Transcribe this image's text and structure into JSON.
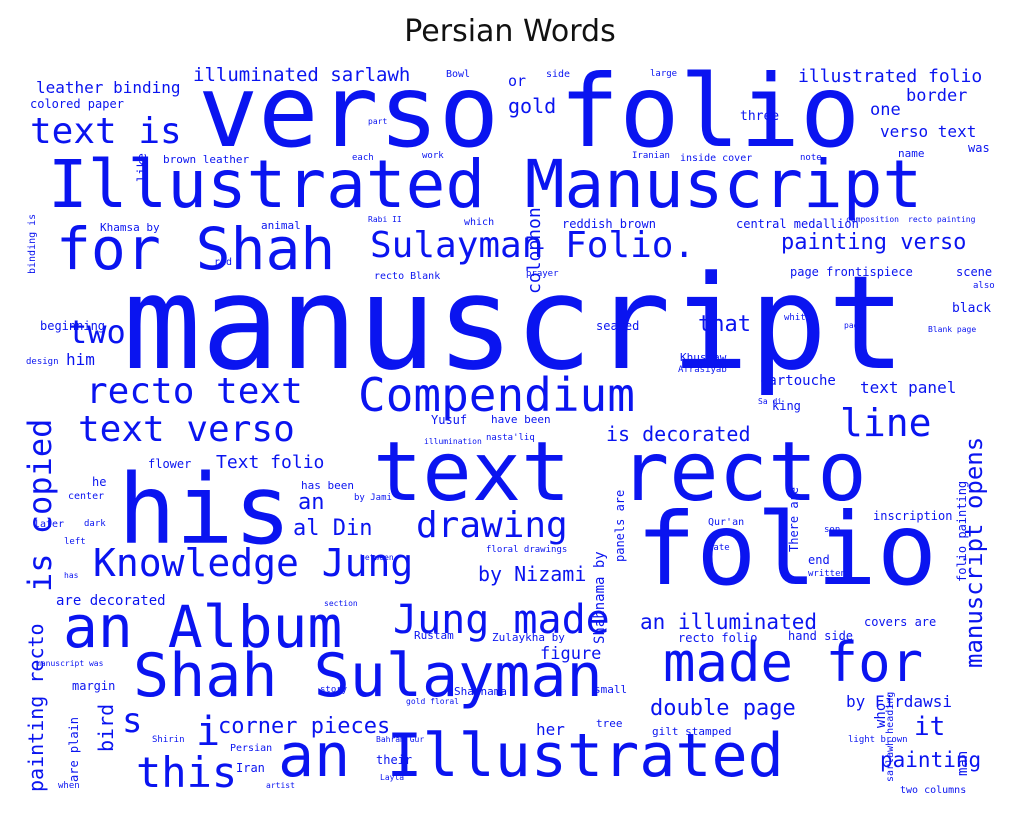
{
  "title": "Persian Words",
  "colors": {
    "word": "#0a14f0",
    "background": "#ffffff"
  },
  "words": {
    "manuscript": "manuscript",
    "verso_folio": "verso folio",
    "illustrated_manuscript": "Illustrated Manuscript",
    "text_recto": "text recto",
    "his": "his",
    "folio": "folio",
    "an_illustrated": "an Illustrated",
    "shah_sulayman": "Shah Sulayman",
    "an_album": "an Album",
    "for_shah": "for Shah",
    "sulayman_folio": "Sulayman Folio.",
    "compendium": "Compendium",
    "made_for": "made for",
    "text_is": "text is",
    "knowledge_jung": "Knowledge Jung",
    "text_verso": "text verso",
    "recto_text": "recto text",
    "jung_made": "Jung made",
    "drawing": "drawing",
    "this": "this",
    "two": "two",
    "line": "line",
    "is_copied": "is copied",
    "manuscript_opens": "manuscript opens",
    "painting_verso": "painting verso",
    "illuminated_sarlawh": "illuminated sarlawh",
    "illustrated_folio": "illustrated folio",
    "leather_binding": "leather binding",
    "an_illuminated": "an illuminated",
    "double_page": "double page",
    "corner_pieces": "corner pieces",
    "by_nizami": "by Nizami",
    "is_decorated": "is decorated",
    "painting_recto": "painting recto",
    "colophon": "colophon",
    "gold": "gold",
    "that": "that",
    "painting": "painting",
    "text_folio": "Text folio",
    "al_din": "al Din",
    "an": "an",
    "s": "s",
    "i": "i",
    "bird": "bird",
    "it": "it",
    "figure": "figure",
    "border": "border",
    "verso_text": "verso text",
    "one": "one",
    "three": "three",
    "or": "or",
    "by_firdawsi": "by Firdawsi",
    "text_panel": "text panel",
    "are_decorated": "are decorated",
    "shahnama_by": "Shahnama by",
    "cartouche": "cartouche",
    "inscription": "inscription",
    "him": "him",
    "beginning": "beginning",
    "her": "her",
    "iran": "Iran",
    "covers_are": "covers are",
    "hand_side": "hand side",
    "recto_folio": "recto folio",
    "text_folio_plain": "text folio",
    "flower": "flower",
    "colored_paper": "colored paper",
    "reddish_brown": "reddish brown",
    "central_medallion": "central medallion",
    "page_frontispiece": "page frontispiece",
    "brown_leather": "brown leather",
    "khamsa_by": "Khamsa by",
    "animal": "animal",
    "bowl": "Bowl",
    "side": "side",
    "large": "large",
    "name": "name",
    "scene": "scene",
    "black": "black",
    "seated": "seated",
    "king": "king",
    "khusraw": "Khusraw",
    "afrasiyab": "Afrasiyab",
    "yusuf": "Yusuf",
    "have_been": "have been",
    "has_been": "has been",
    "by_jami": "by Jami",
    "rustam": "Rustam",
    "zulaykha_by": "Zulaykha by",
    "shahnama": "Shahnama",
    "small": "small",
    "margin": "margin",
    "are_plain": "are plain",
    "gilt_stamped": "gilt stamped",
    "tree": "tree",
    "persian": "Persian",
    "their": "their",
    "when": "when",
    "was": "was",
    "prayer": "prayer",
    "recto_blank": "recto Blank",
    "inside_cover": "inside cover",
    "note": "note",
    "two_columns": "two columns",
    "like": "like",
    "which": "which",
    "also": "also",
    "quran": "Qur'an",
    "floral_drawings": "floral drawings",
    "light_brown": "light brown",
    "sarlawh_heading": "sarlawh heading",
    "who": "who",
    "man": "man",
    "iranian": "Iranian",
    "white": "white",
    "binding_is": "binding is",
    "he": "he",
    "center": "center",
    "later": "later",
    "dark": "dark",
    "date": "date",
    "end": "end",
    "son": "son",
    "written": "written",
    "folio_painting": "folio painting",
    "there_are": "There are",
    "panels_are": "panels are",
    "design": "design",
    "left": "left",
    "has": "has",
    "manuscript_was": "manuscript was",
    "story": "story",
    "bahram_gur": "Bahram Gur",
    "layla": "Layla",
    "artist": "artist",
    "shirin": "Shirin",
    "page": "page",
    "red": "red",
    "part": "part",
    "work": "work",
    "each": "each",
    "gold_floral": "gold floral",
    "section": "section",
    "between": "between",
    "illumination": "illumination",
    "nastaliq": "nasta'liq",
    "blank_page": "Blank page",
    "composition": "composition",
    "recto_painting": "recto painting",
    "rabi_ii": "Rabi II",
    "sa_di": "Sa di"
  }
}
